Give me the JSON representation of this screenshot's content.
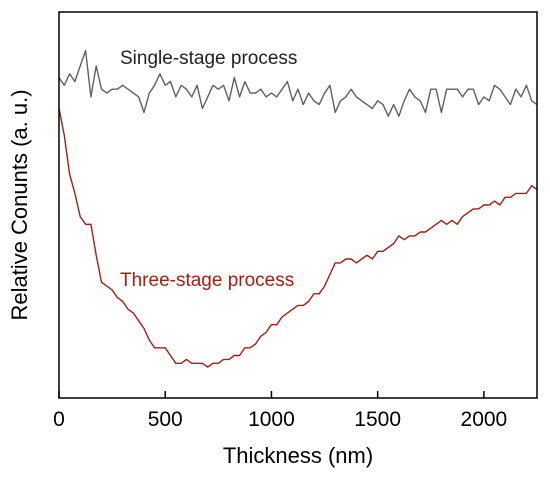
{
  "chart_data": {
    "type": "line",
    "title": "",
    "xlabel": "Thickness (nm)",
    "ylabel": "Relative Conunts (a. u.)",
    "xlim": [
      0,
      2250
    ],
    "ylim": [
      0,
      1
    ],
    "xticks": [
      0,
      500,
      1000,
      1500,
      2000
    ],
    "xtick_labels": [
      "0",
      "500",
      "1000",
      "1500",
      "2000"
    ],
    "y_tick_labels_shown": false,
    "grid": false,
    "legend": "none",
    "annotations": [
      {
        "text": "Single-stage process",
        "series": "Single-stage process"
      },
      {
        "text": "Three-stage process",
        "series": "Three-stage process"
      }
    ],
    "series": [
      {
        "name": "Single-stage process",
        "color": "#606060",
        "x": [
          0,
          25,
          50,
          75,
          100,
          125,
          150,
          175,
          200,
          225,
          250,
          275,
          300,
          325,
          350,
          375,
          400,
          425,
          450,
          475,
          500,
          525,
          550,
          575,
          600,
          625,
          650,
          675,
          700,
          725,
          750,
          775,
          800,
          825,
          850,
          875,
          900,
          925,
          950,
          975,
          1000,
          1025,
          1050,
          1075,
          1100,
          1125,
          1150,
          1175,
          1200,
          1225,
          1250,
          1275,
          1300,
          1325,
          1350,
          1375,
          1400,
          1425,
          1450,
          1475,
          1500,
          1525,
          1550,
          1575,
          1600,
          1625,
          1650,
          1675,
          1700,
          1725,
          1750,
          1775,
          1800,
          1825,
          1850,
          1875,
          1900,
          1925,
          1950,
          1975,
          2000,
          2025,
          2050,
          2075,
          2100,
          2125,
          2150,
          2175,
          2200,
          2225,
          2250
        ],
        "y": [
          0.83,
          0.81,
          0.84,
          0.82,
          0.86,
          0.9,
          0.78,
          0.86,
          0.8,
          0.79,
          0.8,
          0.8,
          0.81,
          0.8,
          0.79,
          0.78,
          0.74,
          0.79,
          0.81,
          0.84,
          0.81,
          0.82,
          0.78,
          0.81,
          0.8,
          0.78,
          0.81,
          0.75,
          0.78,
          0.81,
          0.8,
          0.81,
          0.77,
          0.83,
          0.78,
          0.82,
          0.79,
          0.79,
          0.8,
          0.78,
          0.79,
          0.78,
          0.8,
          0.82,
          0.77,
          0.8,
          0.76,
          0.79,
          0.77,
          0.76,
          0.79,
          0.81,
          0.74,
          0.77,
          0.78,
          0.8,
          0.78,
          0.77,
          0.76,
          0.75,
          0.77,
          0.76,
          0.73,
          0.76,
          0.73,
          0.77,
          0.8,
          0.78,
          0.77,
          0.74,
          0.8,
          0.8,
          0.74,
          0.8,
          0.8,
          0.8,
          0.78,
          0.8,
          0.8,
          0.76,
          0.78,
          0.77,
          0.81,
          0.8,
          0.78,
          0.76,
          0.8,
          0.78,
          0.81,
          0.77,
          0.76
        ]
      },
      {
        "name": "Three-stage process",
        "color": "#a31f12",
        "x": [
          0,
          25,
          50,
          75,
          100,
          125,
          150,
          175,
          200,
          225,
          250,
          275,
          300,
          325,
          350,
          375,
          400,
          425,
          450,
          475,
          500,
          525,
          550,
          575,
          600,
          625,
          650,
          675,
          700,
          725,
          750,
          775,
          800,
          825,
          850,
          875,
          900,
          925,
          950,
          975,
          1000,
          1025,
          1050,
          1075,
          1100,
          1125,
          1150,
          1175,
          1200,
          1225,
          1250,
          1275,
          1300,
          1325,
          1350,
          1375,
          1400,
          1425,
          1450,
          1475,
          1500,
          1525,
          1550,
          1575,
          1600,
          1625,
          1650,
          1675,
          1700,
          1725,
          1750,
          1775,
          1800,
          1825,
          1850,
          1875,
          1900,
          1925,
          1950,
          1975,
          2000,
          2025,
          2050,
          2075,
          2100,
          2125,
          2150,
          2175,
          2200,
          2225,
          2250
        ],
        "y": [
          0.75,
          0.68,
          0.58,
          0.53,
          0.47,
          0.45,
          0.45,
          0.37,
          0.3,
          0.29,
          0.28,
          0.26,
          0.25,
          0.23,
          0.22,
          0.2,
          0.18,
          0.15,
          0.13,
          0.13,
          0.13,
          0.11,
          0.09,
          0.09,
          0.1,
          0.09,
          0.09,
          0.09,
          0.08,
          0.09,
          0.09,
          0.1,
          0.1,
          0.11,
          0.11,
          0.13,
          0.13,
          0.14,
          0.16,
          0.17,
          0.19,
          0.19,
          0.21,
          0.22,
          0.23,
          0.24,
          0.24,
          0.25,
          0.27,
          0.27,
          0.29,
          0.32,
          0.35,
          0.35,
          0.36,
          0.36,
          0.35,
          0.36,
          0.37,
          0.36,
          0.38,
          0.38,
          0.39,
          0.4,
          0.42,
          0.41,
          0.42,
          0.42,
          0.43,
          0.43,
          0.44,
          0.45,
          0.46,
          0.45,
          0.46,
          0.45,
          0.47,
          0.48,
          0.49,
          0.49,
          0.5,
          0.5,
          0.51,
          0.5,
          0.52,
          0.52,
          0.53,
          0.53,
          0.53,
          0.55,
          0.54
        ]
      }
    ]
  }
}
